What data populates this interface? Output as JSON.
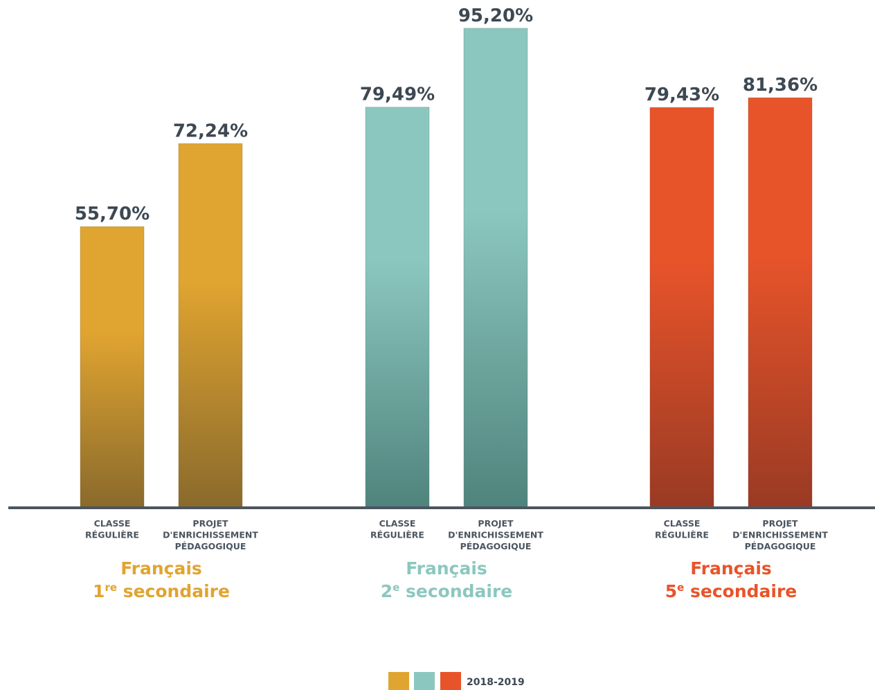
{
  "chart_data": {
    "type": "bar",
    "title": "",
    "xlabel": "",
    "ylabel": "",
    "ylim": [
      0,
      100
    ],
    "grid": false,
    "legend": {
      "position": "bottom-center",
      "label": "2018-2019",
      "swatch_colors": [
        "#e0a430",
        "#8cc7bf",
        "#e8542a"
      ]
    },
    "categories": [
      [
        "CLASSE",
        "RÉGULIÈRE"
      ],
      [
        "PROJET",
        "D'ENRICHISSEMENT",
        "PÉDAGOGIQUE"
      ]
    ],
    "groups": [
      {
        "name_line1": "Français",
        "name_num": "1",
        "name_sup": "re",
        "name_rest": " secondaire",
        "color": "#e0a430",
        "color_dark": "#8a6a2c",
        "values": [
          55.7,
          72.24
        ],
        "value_labels": [
          "55,70%",
          "72,24%"
        ]
      },
      {
        "name_line1": "Français",
        "name_num": "2",
        "name_sup": "e",
        "name_rest": " secondaire",
        "color": "#8cc7bf",
        "color_dark": "#4f847d",
        "values": [
          79.49,
          95.2
        ],
        "value_labels": [
          "79,49%",
          "95,20%"
        ]
      },
      {
        "name_line1": "Français",
        "name_num": "5",
        "name_sup": "e",
        "name_rest": " secondaire",
        "color": "#e8542a",
        "color_dark": "#9a3a24",
        "values": [
          79.43,
          81.36
        ],
        "value_labels": [
          "79,43%",
          "81,36%"
        ]
      }
    ]
  },
  "colors": {
    "axis": "#4b5560",
    "text": "#3d4852"
  }
}
